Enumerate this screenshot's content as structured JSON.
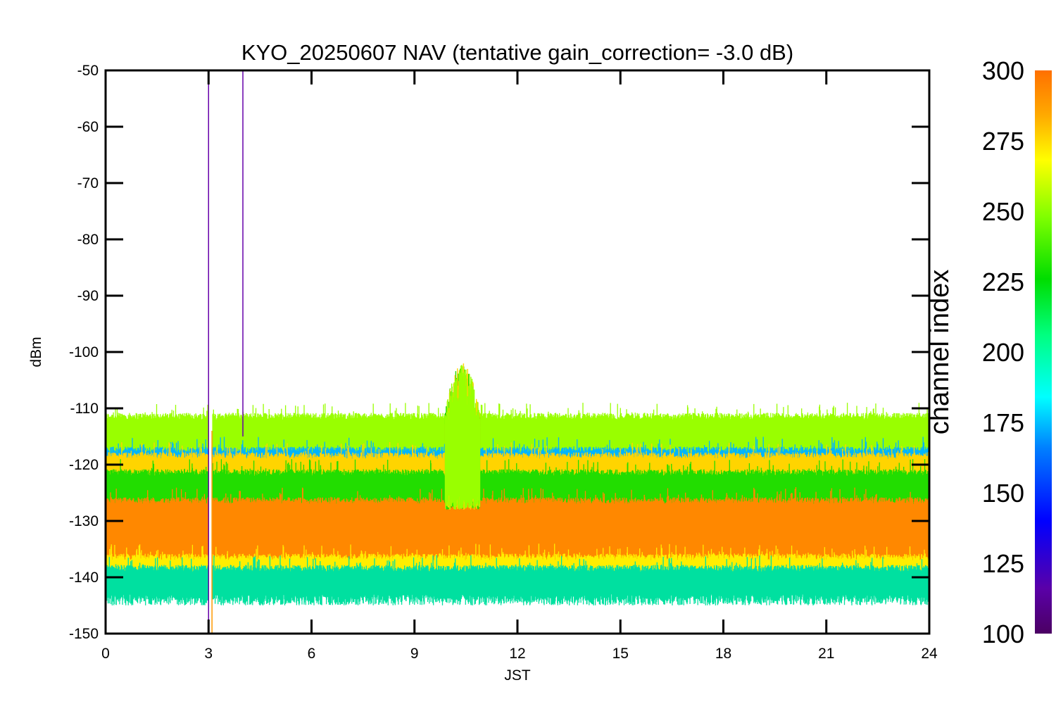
{
  "chart_data": {
    "type": "line",
    "title": "KYO_20250607 NAV (tentative gain_correction= -3.0 dB)",
    "xlabel": "JST",
    "ylabel": "dBm",
    "xlim": [
      0,
      24
    ],
    "ylim": [
      -150,
      -50
    ],
    "x_ticks": [
      "0",
      "3",
      "6",
      "9",
      "12",
      "15",
      "18",
      "21",
      "24"
    ],
    "y_ticks": [
      "-50",
      "-60",
      "-70",
      "-80",
      "-90",
      "-100",
      "-110",
      "-120",
      "-130",
      "-140",
      "-150"
    ],
    "colorbar": {
      "label": "channel index",
      "range": [
        100,
        300
      ],
      "ticks": [
        "300",
        "275",
        "250",
        "225",
        "200",
        "175",
        "150",
        "125",
        "100"
      ]
    },
    "noise_bands": [
      {
        "channel_index": 260,
        "color": "#99ff00",
        "low_dBm": -121,
        "high_dBm": -112
      },
      {
        "channel_index": 170,
        "color": "#00b4ff",
        "low_dBm": -122,
        "high_dBm": -118
      },
      {
        "channel_index": 280,
        "color": "#ffd400",
        "low_dBm": -123,
        "high_dBm": -119
      },
      {
        "channel_index": 230,
        "color": "#22dd00",
        "low_dBm": -129,
        "high_dBm": -122
      },
      {
        "channel_index": 295,
        "color": "#ff8800",
        "low_dBm": -138,
        "high_dBm": -127
      },
      {
        "channel_index": 270,
        "color": "#ffee00",
        "low_dBm": -140,
        "high_dBm": -137
      },
      {
        "channel_index": 210,
        "color": "#00e0a0",
        "low_dBm": -143,
        "high_dBm": -139
      }
    ],
    "gap_interval_hours": [
      3.0,
      3.12
    ],
    "spikes": [
      {
        "x": 3.0,
        "from_dBm": -150,
        "to_dBm": -50,
        "channel_index": 105,
        "color": "#6600aa"
      },
      {
        "x": 3.1,
        "from_dBm": -150,
        "to_dBm": -114,
        "channel_index": 290,
        "color": "#ff9900"
      },
      {
        "x": 4.0,
        "from_dBm": -115,
        "to_dBm": -50,
        "channel_index": 105,
        "color": "#6600aa"
      }
    ],
    "burst": {
      "x_range": [
        9.9,
        10.9
      ],
      "peak_dBm": -102,
      "colors": [
        "#22dd00",
        "#ffd400",
        "#99ff00"
      ]
    }
  }
}
